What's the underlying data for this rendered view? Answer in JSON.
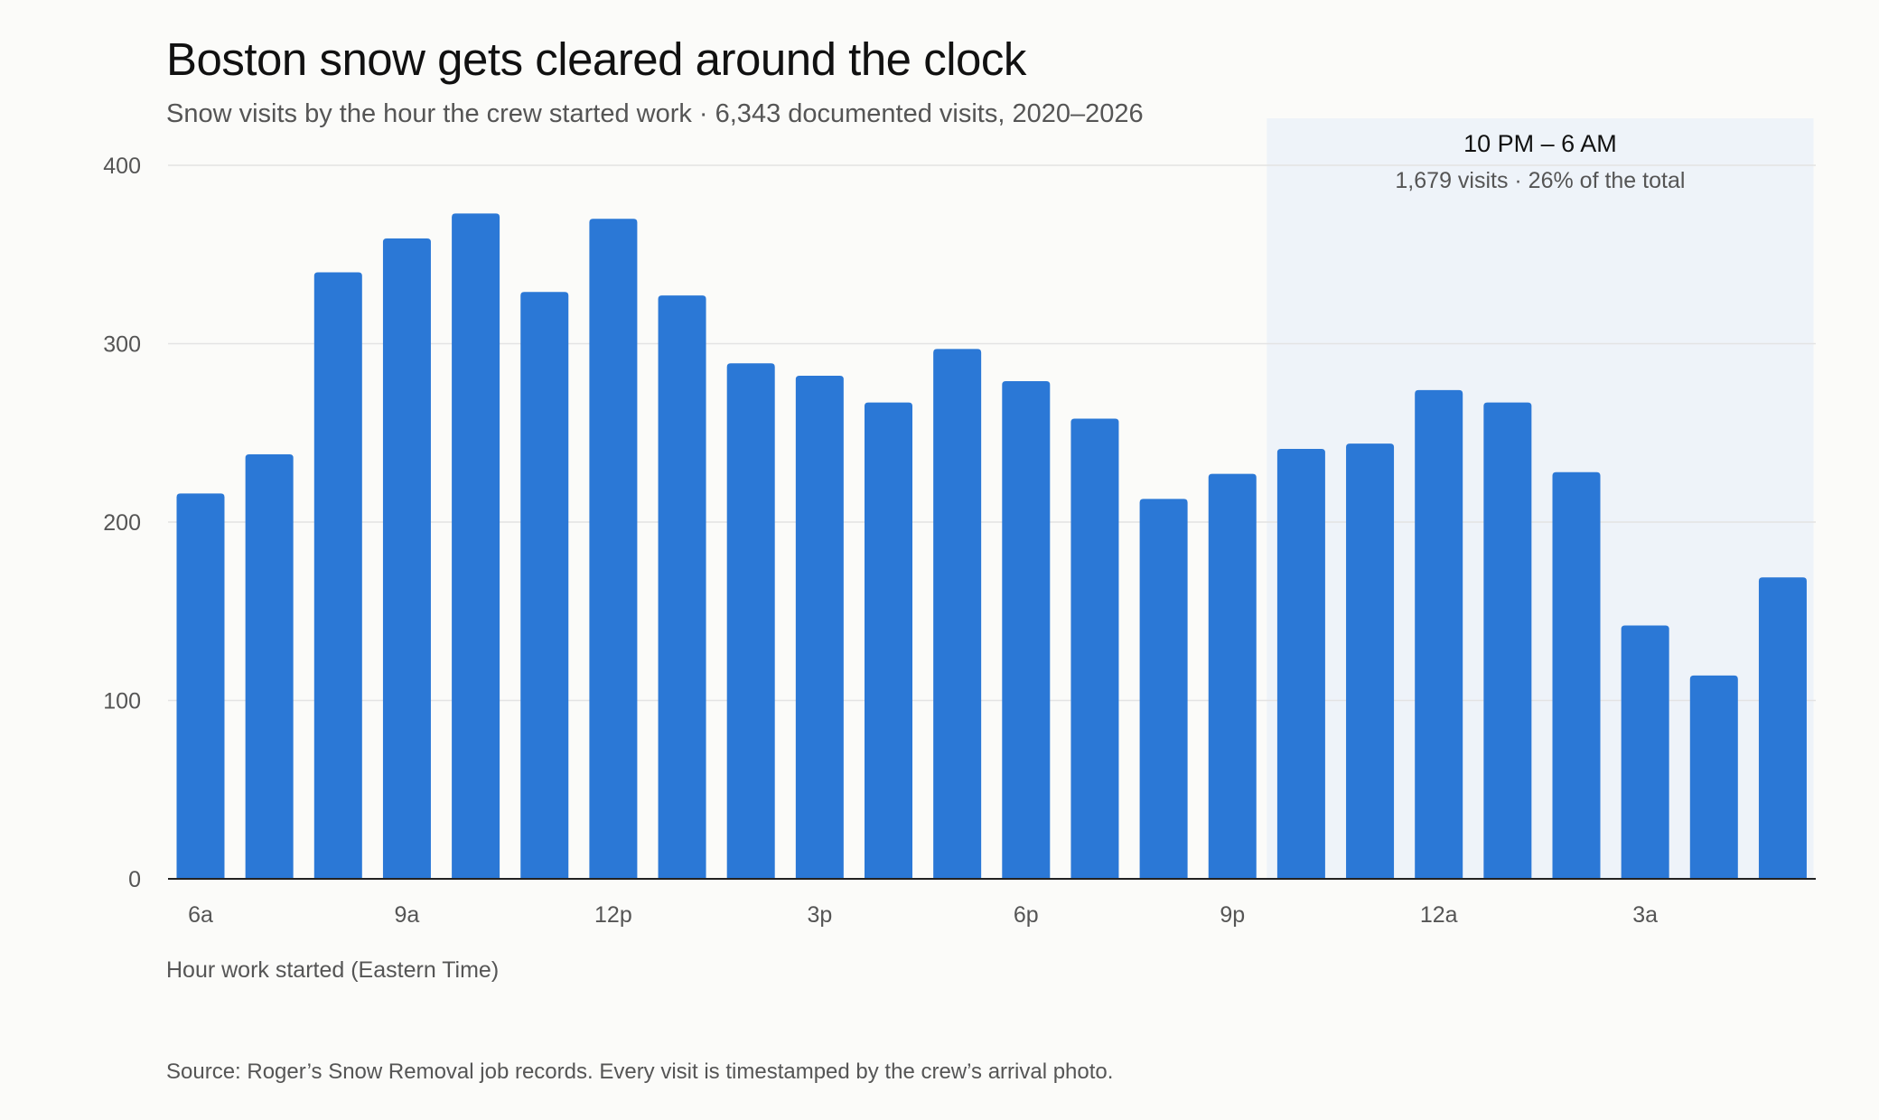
{
  "header": {
    "title": "Boston snow gets cleared around the clock",
    "subtitle": "Snow visits by the hour the crew started work · 6,343 documented visits, 2020–2026"
  },
  "footer": {
    "source": "Source: Roger’s Snow Removal job records. Every visit is timestamped by the crew’s arrival photo."
  },
  "colors": {
    "bar": "#2b78d6",
    "highlight_band": "#eef3f9",
    "grid": "#e3e3e3",
    "axis": "#222222"
  },
  "chart_data": {
    "type": "bar",
    "xlabel": "Hour work started (Eastern Time)",
    "ylabel": "",
    "ylim": [
      0,
      400
    ],
    "yticks": [
      0,
      100,
      200,
      300,
      400
    ],
    "grid": true,
    "categories": [
      "6a",
      "7a",
      "8a",
      "9a",
      "10a",
      "11a",
      "12p",
      "1p",
      "2p",
      "3p",
      "4p",
      "5p",
      "6p",
      "7p",
      "8p",
      "9p",
      "10p",
      "11p",
      "12a",
      "1a",
      "2a",
      "3a",
      "4a",
      "5a"
    ],
    "xtick_labels": [
      "6a",
      "9a",
      "12p",
      "3p",
      "6p",
      "9p",
      "12a",
      "3a"
    ],
    "values": [
      216,
      238,
      340,
      359,
      373,
      329,
      370,
      327,
      289,
      282,
      267,
      297,
      279,
      258,
      213,
      227,
      241,
      244,
      274,
      267,
      228,
      142,
      114,
      169
    ],
    "highlight": {
      "from_category": "10p",
      "to_category": "5a",
      "label": "10 PM – 6 AM",
      "sublabel": "1,679 visits · 26% of the total"
    }
  }
}
